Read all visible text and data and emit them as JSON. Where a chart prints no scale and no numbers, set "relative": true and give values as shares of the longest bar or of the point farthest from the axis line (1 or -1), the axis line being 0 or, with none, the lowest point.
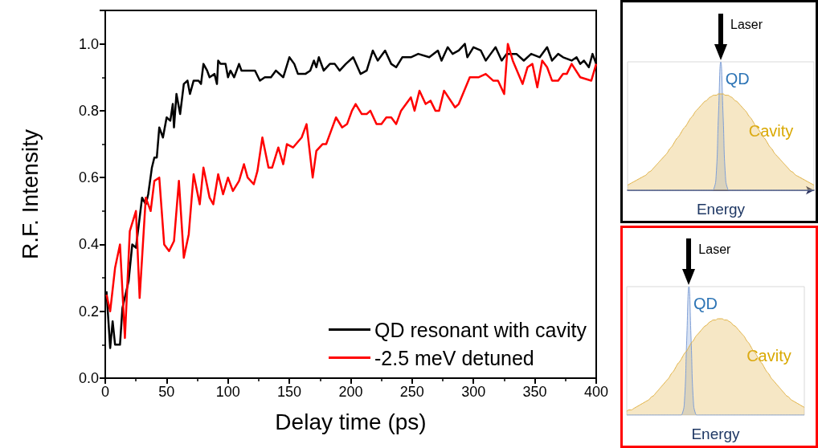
{
  "chart_data": [
    {
      "type": "line",
      "xlabel": "Delay time (ps)",
      "ylabel": "R.F. Intensity",
      "xlim": [
        0,
        400
      ],
      "ylim": [
        0,
        1.1
      ],
      "xticks": [
        0,
        50,
        100,
        150,
        200,
        250,
        300,
        350,
        400
      ],
      "yticks": [
        {
          "value": 0,
          "label": "0.0"
        },
        {
          "value": 0.2,
          "label": "0.2"
        },
        {
          "value": 0.4,
          "label": "0.4"
        },
        {
          "value": 0.6,
          "label": "0.6"
        },
        {
          "value": 0.8,
          "label": "0.8"
        },
        {
          "value": 1,
          "label": "1.0"
        }
      ],
      "legend": "bottom right",
      "grid": false,
      "series": [
        {
          "name": "QD resonant with cavity",
          "color": "#000000",
          "x": [
            1,
            4,
            6,
            8,
            12,
            14,
            19,
            22,
            25,
            27,
            30,
            33,
            35,
            38,
            40,
            42,
            44,
            47,
            50,
            53,
            55,
            56,
            58,
            61,
            64,
            67,
            69,
            72,
            76,
            78,
            80,
            83,
            85,
            89,
            91,
            92,
            94,
            98,
            100,
            102,
            105,
            109,
            111,
            117,
            122,
            126,
            130,
            135,
            139,
            145,
            150,
            154,
            157,
            163,
            167,
            170,
            172,
            174,
            178,
            183,
            187,
            191,
            196,
            202,
            208,
            213,
            218,
            222,
            228,
            233,
            237,
            242,
            249,
            255,
            264,
            271,
            274,
            279,
            283,
            288,
            293,
            295,
            300,
            306,
            310,
            314,
            318,
            323,
            327,
            335,
            341,
            347,
            354,
            360,
            364,
            369,
            373,
            380,
            384,
            387,
            390,
            394,
            397,
            400
          ],
          "values": [
            0.26,
            0.09,
            0.17,
            0.1,
            0.1,
            0.21,
            0.29,
            0.4,
            0.39,
            0.45,
            0.54,
            0.52,
            0.55,
            0.63,
            0.66,
            0.66,
            0.75,
            0.72,
            0.78,
            0.77,
            0.82,
            0.75,
            0.85,
            0.79,
            0.88,
            0.89,
            0.85,
            0.89,
            0.89,
            0.88,
            0.94,
            0.92,
            0.9,
            0.91,
            0.88,
            0.95,
            0.94,
            0.94,
            0.9,
            0.92,
            0.9,
            0.94,
            0.92,
            0.92,
            0.92,
            0.89,
            0.9,
            0.9,
            0.92,
            0.9,
            0.96,
            0.94,
            0.91,
            0.91,
            0.92,
            0.95,
            0.93,
            0.96,
            0.92,
            0.94,
            0.94,
            0.92,
            0.94,
            0.96,
            0.91,
            0.92,
            0.98,
            0.95,
            0.98,
            0.94,
            0.93,
            0.96,
            0.96,
            0.97,
            0.96,
            0.98,
            0.95,
            0.99,
            0.97,
            0.98,
            1.0,
            0.96,
            0.99,
            0.98,
            0.95,
            0.97,
            0.99,
            0.95,
            0.97,
            0.97,
            0.95,
            0.97,
            0.96,
            0.99,
            0.95,
            0.97,
            0.96,
            0.95,
            0.96,
            0.94,
            0.95,
            0.93,
            0.97,
            0.94
          ]
        },
        {
          "name": "-2.5 meV detuned",
          "color": "#ff0000",
          "x": [
            1,
            4,
            8,
            12,
            16,
            20,
            25,
            28,
            33,
            37,
            40,
            44,
            48,
            52,
            56,
            60,
            64,
            68,
            72,
            77,
            80,
            85,
            88,
            92,
            96,
            100,
            104,
            109,
            113,
            116,
            121,
            124,
            128,
            133,
            136,
            141,
            145,
            148,
            153,
            160,
            164,
            169,
            172,
            177,
            180,
            184,
            188,
            193,
            197,
            201,
            204,
            209,
            213,
            216,
            221,
            225,
            229,
            233,
            237,
            241,
            249,
            252,
            256,
            261,
            265,
            269,
            272,
            276,
            285,
            288,
            297,
            304,
            310,
            316,
            320,
            325,
            328,
            332,
            340,
            344,
            348,
            352,
            356,
            360,
            364,
            369,
            373,
            376,
            380,
            387,
            396,
            400
          ],
          "values": [
            0.25,
            0.2,
            0.33,
            0.4,
            0.12,
            0.44,
            0.5,
            0.24,
            0.54,
            0.5,
            0.59,
            0.6,
            0.4,
            0.38,
            0.41,
            0.59,
            0.36,
            0.43,
            0.61,
            0.52,
            0.63,
            0.54,
            0.52,
            0.61,
            0.55,
            0.6,
            0.56,
            0.59,
            0.64,
            0.6,
            0.58,
            0.62,
            0.72,
            0.63,
            0.63,
            0.69,
            0.64,
            0.7,
            0.69,
            0.72,
            0.76,
            0.6,
            0.68,
            0.7,
            0.7,
            0.74,
            0.78,
            0.75,
            0.76,
            0.8,
            0.82,
            0.79,
            0.79,
            0.8,
            0.76,
            0.76,
            0.78,
            0.78,
            0.76,
            0.8,
            0.84,
            0.8,
            0.86,
            0.82,
            0.83,
            0.8,
            0.8,
            0.86,
            0.81,
            0.82,
            0.9,
            0.9,
            0.91,
            0.89,
            0.89,
            0.85,
            1.0,
            0.95,
            0.88,
            0.93,
            0.94,
            0.87,
            0.95,
            0.93,
            0.89,
            0.89,
            0.91,
            0.91,
            0.94,
            0.9,
            0.89,
            0.94
          ]
        }
      ]
    },
    {
      "type": "area",
      "relative": true,
      "xlabel": "Energy",
      "annotations": [
        "Laser"
      ],
      "categories": [
        null,
        null,
        null,
        null,
        null,
        null,
        null,
        null,
        null,
        null,
        null,
        null,
        null,
        null,
        null,
        null,
        null,
        null,
        null,
        null,
        null,
        null,
        null,
        null,
        null,
        null,
        null,
        null,
        null,
        null,
        null,
        null,
        null,
        null,
        null,
        null,
        null,
        null,
        null,
        null,
        null,
        null,
        null,
        null,
        null,
        null,
        null,
        null,
        null,
        null,
        null,
        null,
        null,
        null,
        null,
        null,
        null,
        null,
        null,
        null,
        null,
        null,
        null,
        null,
        null,
        null,
        null,
        null,
        null,
        null,
        null,
        null,
        null,
        null,
        null,
        null,
        null,
        null,
        null,
        null,
        null
      ],
      "series": [
        {
          "name": "QD",
          "color": "#7f9fd6",
          "values": [
            0,
            0,
            0,
            0,
            0,
            0,
            0,
            0,
            0,
            0,
            0,
            0,
            0,
            0,
            0,
            0,
            0,
            0,
            0,
            0,
            0,
            0,
            0,
            0,
            0,
            0,
            0,
            0,
            0,
            0,
            0,
            0,
            0,
            0,
            0,
            0,
            0,
            0.01,
            0.11,
            0.58,
            1,
            0.58,
            0.11,
            0.01,
            0,
            0,
            0,
            0,
            0,
            0,
            0,
            0,
            0,
            0,
            0,
            0,
            0,
            0,
            0,
            0,
            0,
            0,
            0,
            0,
            0,
            0,
            0,
            0,
            0,
            0,
            0,
            0,
            0,
            0,
            0,
            0,
            0,
            0,
            0,
            0,
            0
          ]
        },
        {
          "name": "Cavity",
          "color": "#e0b040",
          "values": [
            0.04,
            0.05,
            0.06,
            0.07,
            0.08,
            0.09,
            0.1,
            0.11,
            0.12,
            0.14,
            0.15,
            0.17,
            0.19,
            0.21,
            0.23,
            0.25,
            0.27,
            0.29,
            0.32,
            0.34,
            0.37,
            0.4,
            0.42,
            0.45,
            0.48,
            0.5,
            0.53,
            0.56,
            0.58,
            0.61,
            0.63,
            0.65,
            0.67,
            0.69,
            0.7,
            0.72,
            0.73,
            0.74,
            0.74,
            0.75,
            0.75,
            0.75,
            0.74,
            0.74,
            0.73,
            0.72,
            0.7,
            0.69,
            0.67,
            0.65,
            0.63,
            0.61,
            0.58,
            0.56,
            0.53,
            0.5,
            0.48,
            0.45,
            0.42,
            0.4,
            0.37,
            0.34,
            0.32,
            0.29,
            0.27,
            0.25,
            0.23,
            0.21,
            0.19,
            0.17,
            0.15,
            0.14,
            0.12,
            0.11,
            0.1,
            0.09,
            0.08,
            0.07,
            0.06,
            0.05,
            0.04
          ]
        }
      ]
    },
    {
      "type": "area",
      "relative": true,
      "xlabel": "Energy",
      "annotations": [
        "Laser"
      ],
      "categories": [
        null,
        null,
        null,
        null,
        null,
        null,
        null,
        null,
        null,
        null,
        null,
        null,
        null,
        null,
        null,
        null,
        null,
        null,
        null,
        null,
        null,
        null,
        null,
        null,
        null,
        null,
        null,
        null,
        null,
        null,
        null,
        null,
        null,
        null,
        null,
        null,
        null,
        null,
        null,
        null,
        null,
        null,
        null,
        null,
        null,
        null,
        null,
        null,
        null,
        null,
        null,
        null,
        null,
        null,
        null,
        null,
        null,
        null,
        null,
        null,
        null,
        null,
        null,
        null,
        null,
        null,
        null,
        null,
        null,
        null,
        null,
        null,
        null,
        null,
        null,
        null,
        null,
        null,
        null,
        null,
        null
      ],
      "series": [
        {
          "name": "QD",
          "color": "#7f9fd6",
          "values": [
            0,
            0,
            0,
            0,
            0,
            0,
            0,
            0,
            0,
            0,
            0,
            0,
            0,
            0,
            0,
            0,
            0,
            0,
            0,
            0,
            0,
            0,
            0,
            0,
            0,
            0.01,
            0.11,
            0.58,
            1,
            0.58,
            0.11,
            0.01,
            0,
            0,
            0,
            0,
            0,
            0,
            0,
            0,
            0,
            0,
            0,
            0,
            0,
            0,
            0,
            0,
            0,
            0,
            0,
            0,
            0,
            0,
            0,
            0,
            0,
            0,
            0,
            0,
            0,
            0,
            0,
            0,
            0,
            0,
            0,
            0,
            0,
            0,
            0,
            0,
            0,
            0,
            0,
            0,
            0,
            0,
            0,
            0,
            0
          ]
        },
        {
          "name": "Cavity",
          "color": "#e0b040",
          "values": [
            0.03,
            0.04,
            0.04,
            0.05,
            0.06,
            0.07,
            0.08,
            0.09,
            0.1,
            0.11,
            0.12,
            0.14,
            0.15,
            0.17,
            0.19,
            0.21,
            0.23,
            0.25,
            0.27,
            0.29,
            0.32,
            0.34,
            0.37,
            0.4,
            0.42,
            0.45,
            0.48,
            0.5,
            0.53,
            0.56,
            0.58,
            0.61,
            0.63,
            0.65,
            0.67,
            0.69,
            0.7,
            0.72,
            0.73,
            0.74,
            0.74,
            0.75,
            0.75,
            0.75,
            0.74,
            0.74,
            0.73,
            0.72,
            0.7,
            0.69,
            0.67,
            0.65,
            0.63,
            0.61,
            0.58,
            0.56,
            0.53,
            0.5,
            0.48,
            0.45,
            0.42,
            0.4,
            0.37,
            0.34,
            0.32,
            0.29,
            0.27,
            0.25,
            0.23,
            0.21,
            0.19,
            0.17,
            0.15,
            0.14,
            0.12,
            0.11,
            0.1,
            0.09,
            0.08,
            0.07,
            0.06
          ]
        }
      ]
    }
  ]
}
